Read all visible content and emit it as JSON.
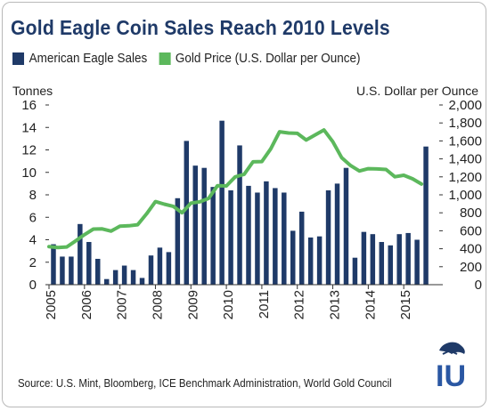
{
  "title": "Gold Eagle Coin Sales Reach 2010 Levels",
  "source": "Source: U.S. Mint, Bloomberg, ICE Benchmark Administration, World Gold Council",
  "colors": {
    "bar": "#1f3a68",
    "line": "#5cb85c",
    "title": "#1f3a68"
  },
  "logo": {
    "icon": "us-global-investors-logo",
    "letters": "IU"
  },
  "chart_data": {
    "type": "bar",
    "ylabel": "Tonnes",
    "y2label": "U.S. Dollar per Ounce",
    "ylim": [
      0,
      16
    ],
    "y2lim": [
      0,
      2000
    ],
    "yticks": [
      0,
      2,
      4,
      6,
      8,
      10,
      12,
      14,
      16
    ],
    "y2ticks": [
      "0",
      "200",
      "400",
      "600",
      "800",
      "1,000",
      "1,200",
      "1,400",
      "1,600",
      "1,800",
      "2,000"
    ],
    "xtick_labels": [
      "2005",
      "2006",
      "2007",
      "2008",
      "2009",
      "2010",
      "2011",
      "2012",
      "2013",
      "2014",
      "2015"
    ],
    "legend": [
      "American Eagle Sales",
      "Gold Price (U.S. Dollar per Ounce)"
    ],
    "legend_position": "top",
    "grid": false,
    "x_start": 2005,
    "bars_per_year": 4,
    "series": [
      {
        "name": "American Eagle Sales",
        "type": "bar",
        "values": [
          3.6,
          2.5,
          2.5,
          5.4,
          3.8,
          2.3,
          0.5,
          1.3,
          1.7,
          1.3,
          0.6,
          2.6,
          3.3,
          2.9,
          7.7,
          12.8,
          10.6,
          10.4,
          8.7,
          14.6,
          8.4,
          12.4,
          8.8,
          8.2,
          9.2,
          8.6,
          8.2,
          4.8,
          6.5,
          4.2,
          4.3,
          8.4,
          9.0,
          10.4,
          2.4,
          4.7,
          4.5,
          3.8,
          3.5,
          4.5,
          4.6,
          4.0,
          12.3
        ]
      },
      {
        "name": "Gold Price (U.S. Dollar per Ounce)",
        "type": "line",
        "x": [
          2005.0,
          2005.25,
          2005.5,
          2005.75,
          2006.0,
          2006.25,
          2006.5,
          2006.75,
          2007.0,
          2007.25,
          2007.5,
          2007.75,
          2008.0,
          2008.25,
          2008.5,
          2008.75,
          2009.0,
          2009.25,
          2009.5,
          2009.75,
          2010.0,
          2010.25,
          2010.5,
          2010.75,
          2011.0,
          2011.25,
          2011.5,
          2011.75,
          2012.0,
          2012.25,
          2012.5,
          2012.75,
          2013.0,
          2013.25,
          2013.5,
          2013.75,
          2014.0,
          2014.25,
          2014.5,
          2014.75,
          2015.0,
          2015.25,
          2015.5
        ],
        "values": [
          424,
          414,
          420,
          487,
          556,
          619,
          621,
          596,
          650,
          655,
          667,
          788,
          925,
          896,
          872,
          800,
          908,
          922,
          960,
          1102,
          1099,
          1200,
          1228,
          1367,
          1370,
          1512,
          1702,
          1688,
          1684,
          1610,
          1665,
          1722,
          1592,
          1414,
          1326,
          1265,
          1291,
          1288,
          1282,
          1201,
          1218,
          1178,
          1120
        ]
      }
    ]
  }
}
